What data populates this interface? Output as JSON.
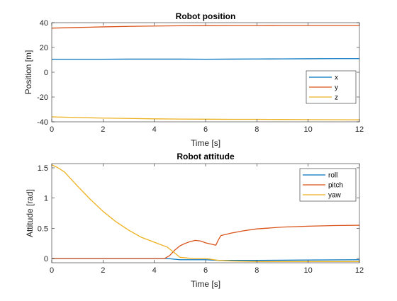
{
  "chart_data": [
    {
      "type": "line",
      "title": "Robot position",
      "xlabel": "Time [s]",
      "ylabel": "Position [m]",
      "xlim": [
        0,
        12
      ],
      "ylim": [
        -40,
        40
      ],
      "xticks": [
        "0",
        "2",
        "4",
        "6",
        "8",
        "10",
        "12"
      ],
      "yticks": [
        "-40",
        "-20",
        "0",
        "20",
        "40"
      ],
      "legend_position": "right",
      "x": [
        0,
        1,
        2,
        3,
        4,
        5,
        6,
        7,
        8,
        9,
        10,
        11,
        12
      ],
      "series": [
        {
          "name": "x",
          "color": "#0072BD",
          "values": [
            10.5,
            10.5,
            10.5,
            10.6,
            10.6,
            10.6,
            10.5,
            10.6,
            10.7,
            10.8,
            10.9,
            11.0,
            11.0
          ]
        },
        {
          "name": "y",
          "color": "#D95319",
          "values": [
            35.6,
            36.1,
            36.6,
            37.0,
            37.3,
            37.5,
            37.6,
            37.7,
            37.7,
            37.8,
            37.8,
            37.8,
            37.8
          ]
        },
        {
          "name": "z",
          "color": "#EDB120",
          "values": [
            -36.0,
            -36.5,
            -37.0,
            -37.3,
            -37.6,
            -37.8,
            -37.9,
            -38.0,
            -38.0,
            -38.1,
            -38.2,
            -38.3,
            -38.4
          ]
        }
      ]
    },
    {
      "type": "line",
      "title": "Robot attitude",
      "xlabel": "Time [s]",
      "ylabel": "Attitude [rad]",
      "xlim": [
        0,
        12
      ],
      "ylim": [
        -0.07,
        1.57
      ],
      "xticks": [
        "0",
        "2",
        "4",
        "6",
        "8",
        "10",
        "12"
      ],
      "yticks": [
        "0",
        "0.5",
        "1",
        "1.5"
      ],
      "legend_position": "top-right",
      "series": [
        {
          "name": "roll",
          "color": "#0072BD",
          "x": [
            0,
            4.5,
            5.0,
            5.5,
            6.0,
            6.5,
            7,
            8,
            10,
            12
          ],
          "values": [
            0.0,
            0.0,
            -0.02,
            -0.02,
            -0.02,
            -0.03,
            -0.03,
            -0.03,
            -0.025,
            -0.02
          ]
        },
        {
          "name": "pitch",
          "color": "#D95319",
          "x": [
            0,
            4.4,
            4.6,
            4.8,
            5.0,
            5.2,
            5.4,
            5.6,
            5.8,
            6.0,
            6.2,
            6.4,
            6.5,
            6.6,
            7.0,
            7.5,
            8,
            9,
            10,
            11,
            12
          ],
          "values": [
            0.0,
            0.0,
            0.05,
            0.14,
            0.21,
            0.25,
            0.28,
            0.3,
            0.29,
            0.26,
            0.24,
            0.22,
            0.31,
            0.38,
            0.42,
            0.46,
            0.49,
            0.52,
            0.535,
            0.545,
            0.55
          ]
        },
        {
          "name": "yaw",
          "color": "#EDB120",
          "x": [
            0,
            0.25,
            0.5,
            1.0,
            1.5,
            2.0,
            2.5,
            3.0,
            3.5,
            4.0,
            4.5,
            4.8,
            5.0,
            5.5,
            6.0,
            6.5,
            7.0,
            8,
            10,
            12
          ],
          "values": [
            1.55,
            1.5,
            1.43,
            1.2,
            0.98,
            0.78,
            0.61,
            0.47,
            0.35,
            0.27,
            0.19,
            0.09,
            0.02,
            0.0,
            0.0,
            -0.03,
            -0.04,
            -0.05,
            -0.05,
            -0.05
          ]
        }
      ]
    }
  ]
}
